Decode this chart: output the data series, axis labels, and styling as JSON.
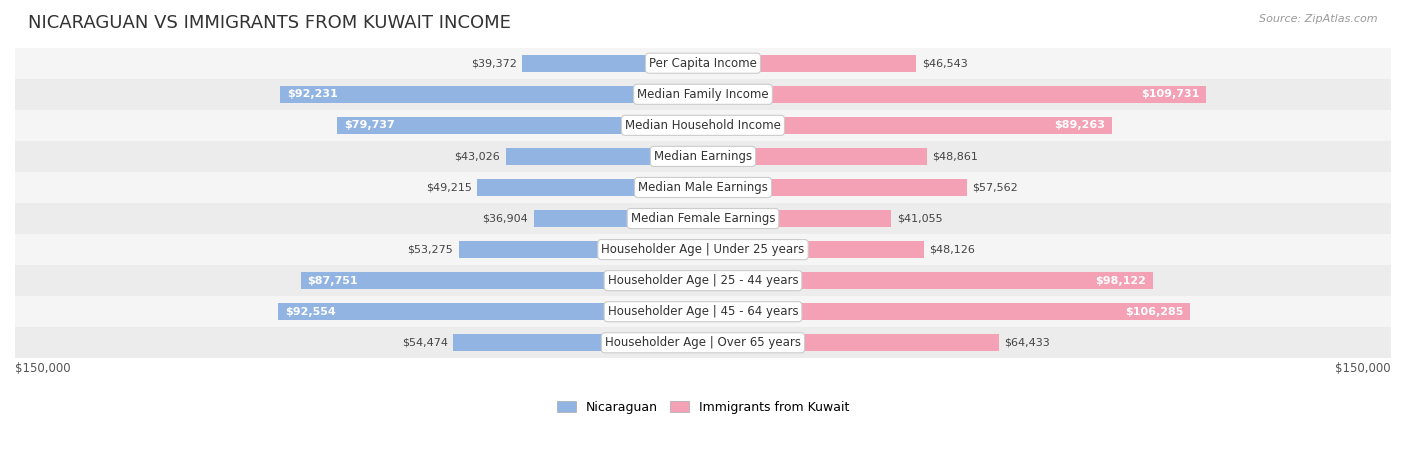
{
  "title": "NICARAGUAN VS IMMIGRANTS FROM KUWAIT INCOME",
  "source": "Source: ZipAtlas.com",
  "categories": [
    "Per Capita Income",
    "Median Family Income",
    "Median Household Income",
    "Median Earnings",
    "Median Male Earnings",
    "Median Female Earnings",
    "Householder Age | Under 25 years",
    "Householder Age | 25 - 44 years",
    "Householder Age | 45 - 64 years",
    "Householder Age | Over 65 years"
  ],
  "nicaraguan_values": [
    39372,
    92231,
    79737,
    43026,
    49215,
    36904,
    53275,
    87751,
    92554,
    54474
  ],
  "kuwait_values": [
    46543,
    109731,
    89263,
    48861,
    57562,
    41055,
    48126,
    98122,
    106285,
    64433
  ],
  "max_val": 150000,
  "blue_color": "#92b4e3",
  "pink_color": "#f4a0b5",
  "row_bg_colors": [
    "#f5f5f5",
    "#ececec"
  ],
  "xlabel_left": "$150,000",
  "xlabel_right": "$150,000",
  "legend_nicaraguan": "Nicaraguan",
  "legend_kuwait": "Immigrants from Kuwait",
  "title_fontsize": 13,
  "label_fontsize": 8.5,
  "value_fontsize": 8.0,
  "nicaraguan_inside_threshold": 70000,
  "kuwait_inside_threshold": 70000
}
